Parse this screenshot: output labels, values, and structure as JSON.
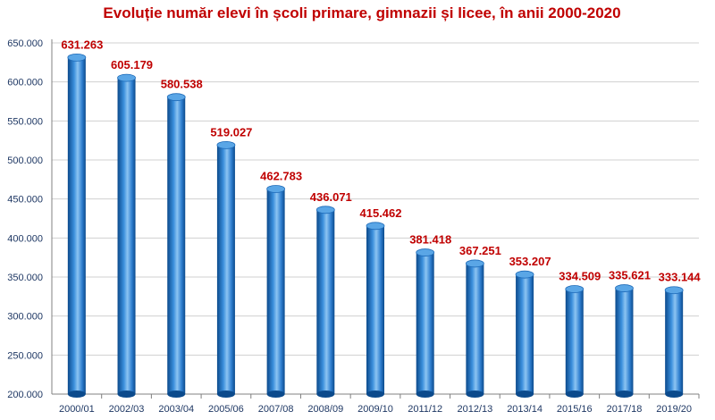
{
  "chart_data": {
    "type": "bar",
    "title": "Evoluție număr elevi în școli primare, gimnazii și licee, în anii 2000-2020",
    "xlabel": "",
    "ylabel": "",
    "categories": [
      "2000/01",
      "2002/03",
      "2003/04",
      "2005/06",
      "2007/08",
      "2008/09",
      "2009/10",
      "2011/12",
      "2012/13",
      "2013/14",
      "2015/16",
      "2017/18",
      "2019/20"
    ],
    "values": [
      631263,
      605179,
      580538,
      519027,
      462783,
      436071,
      415462,
      381418,
      367251,
      353207,
      334509,
      335621,
      333144
    ],
    "value_labels": [
      "631.263",
      "605.179",
      "580.538",
      "519.027",
      "462.783",
      "436.071",
      "415.462",
      "381.418",
      "367.251",
      "353.207",
      "334.509",
      "335.621",
      "333.144"
    ],
    "ylim": [
      200000,
      650000
    ],
    "yticks": [
      200000,
      250000,
      300000,
      350000,
      400000,
      450000,
      500000,
      550000,
      600000,
      650000
    ],
    "ytick_labels": [
      "200.000",
      "250.000",
      "300.000",
      "350.000",
      "400.000",
      "450.000",
      "500.000",
      "550.000",
      "600.000",
      "650.000"
    ],
    "grid": true,
    "legend": "none",
    "colors": {
      "title": "#c00000",
      "data_label": "#c00000",
      "bar_dark": "#0b4a8c",
      "bar_mid": "#2f86d6",
      "bar_light": "#8cc4f2",
      "bar_top": "#5aa6e6",
      "grid": "#d0d0d0",
      "axis": "#808080",
      "tick_text": "#1f3864"
    }
  }
}
